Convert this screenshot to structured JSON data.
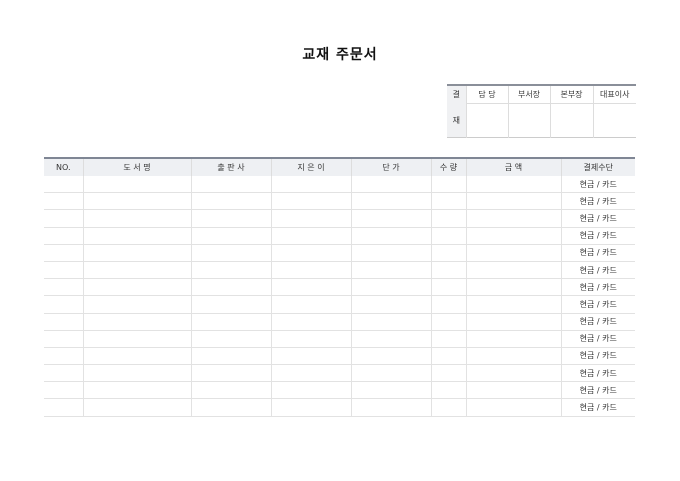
{
  "title": "교재 주문서",
  "approval": {
    "side_labels": [
      "결",
      "재"
    ],
    "headers": [
      "담  당",
      "부서장",
      "본부장",
      "대표이사"
    ]
  },
  "orders": {
    "headers": [
      "NO.",
      "도 서 명",
      "출 판 사",
      "지 은 이",
      "단  가",
      "수  량",
      "금  액",
      "결제수단"
    ],
    "rows": [
      "현금 / 카드",
      "현금 / 카드",
      "현금 / 카드",
      "현금 / 카드",
      "현금 / 카드",
      "현금 / 카드",
      "현금 / 카드",
      "현금 / 카드",
      "현금 / 카드",
      "현금 / 카드",
      "현금 / 카드",
      "현금 / 카드",
      "현금 / 카드",
      "현금 / 카드"
    ]
  }
}
